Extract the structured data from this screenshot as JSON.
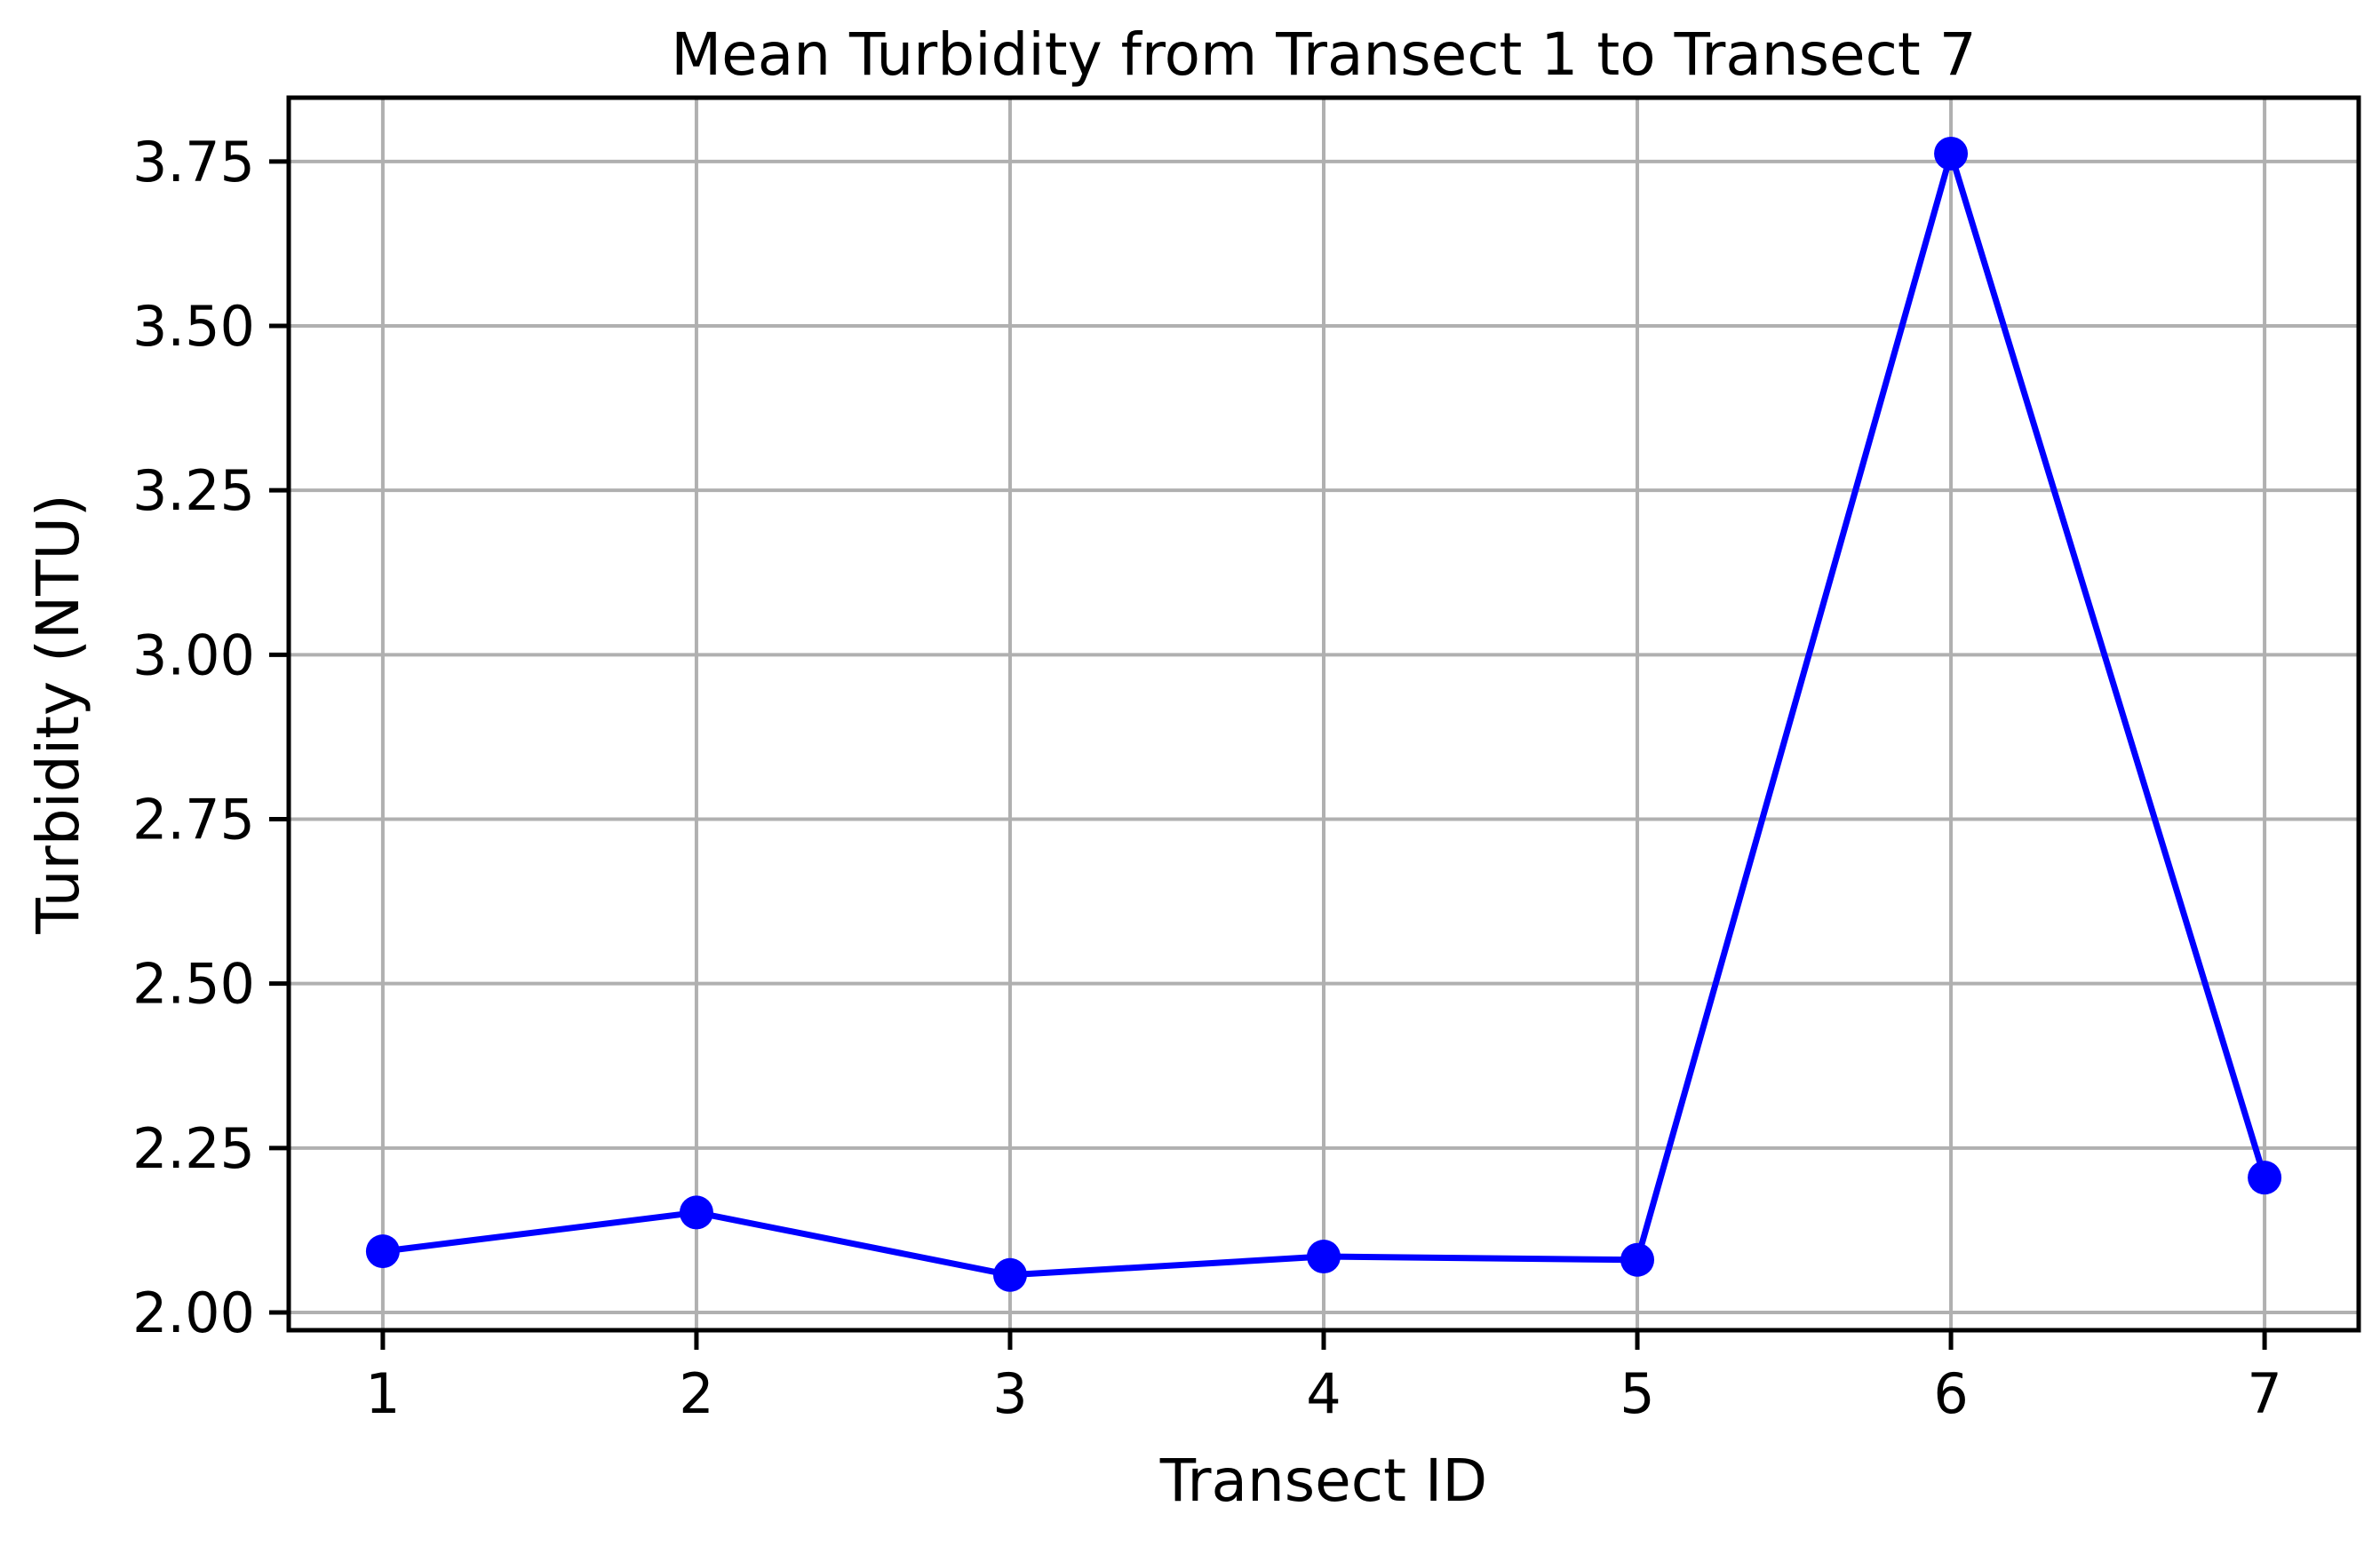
{
  "chart_data": {
    "type": "line",
    "title": "Mean Turbidity from Transect 1 to Transect 7",
    "xlabel": "Transect ID",
    "ylabel": "Turbidity (NTU)",
    "x": [
      1,
      2,
      3,
      4,
      5,
      6,
      7
    ],
    "values": [
      2.093,
      2.152,
      2.057,
      2.085,
      2.08,
      3.762,
      2.205
    ],
    "xlim": [
      0.7,
      7.3
    ],
    "ylim": [
      1.973,
      3.847
    ],
    "x_ticks": [
      1,
      2,
      3,
      4,
      5,
      6,
      7
    ],
    "x_tick_labels": [
      "1",
      "2",
      "3",
      "4",
      "5",
      "6",
      "7"
    ],
    "y_ticks": [
      2.0,
      2.25,
      2.5,
      2.75,
      3.0,
      3.25,
      3.5,
      3.75
    ],
    "y_tick_labels": [
      "2.00",
      "2.25",
      "2.50",
      "2.75",
      "3.00",
      "3.25",
      "3.50",
      "3.75"
    ],
    "grid": true,
    "colors": {
      "line": "#0000ff",
      "marker": "#0000ff",
      "grid": "#b0b0b0",
      "axes": "#000000"
    }
  }
}
